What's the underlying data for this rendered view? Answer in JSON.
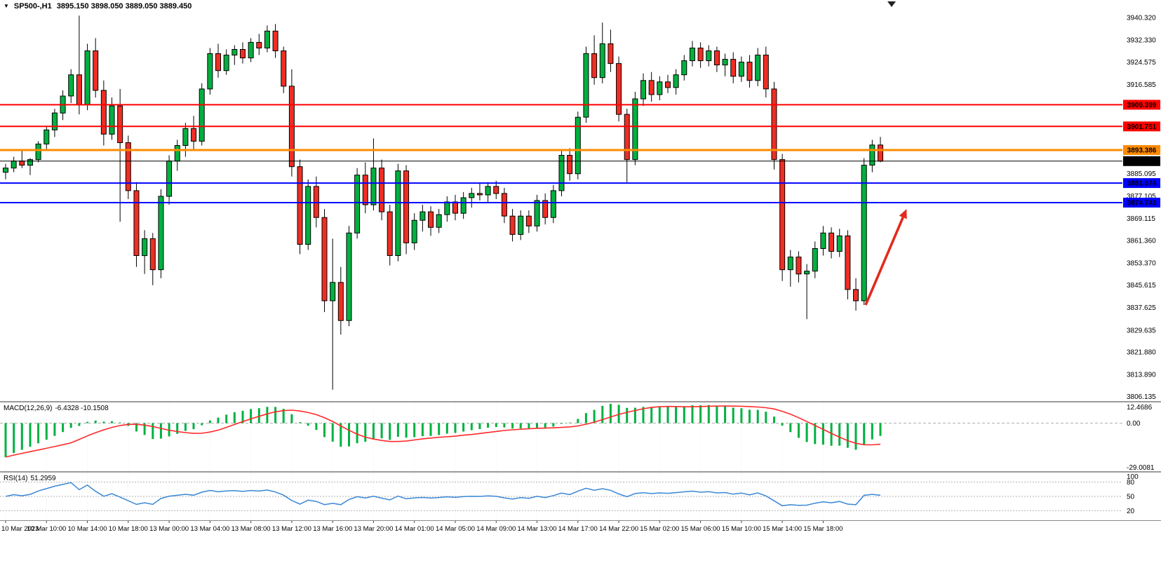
{
  "title": {
    "symbol_period": "SP500-,H1",
    "ohlc": "3895.150 3898.050 3889.050 3889.450"
  },
  "colors": {
    "background": "#ffffff",
    "up_candle": "#00b140",
    "down_candle": "#ef2e24",
    "wick": "#000000",
    "candle_border": "#000000",
    "macd_histogram": "#00b140",
    "macd_signal": "#ff2a2a",
    "rsi_line": "#3a87d6",
    "arrow": "#e12b1e",
    "grid": "#ececec",
    "level_dash": "#b0b0b0"
  },
  "levels": [
    {
      "price": 3909.399,
      "label": "3909.399",
      "color": "#ff0000",
      "width": 2,
      "name": "resistance-1"
    },
    {
      "price": 3901.751,
      "label": "3901.751",
      "color": "#ff0000",
      "width": 2,
      "name": "resistance-2"
    },
    {
      "price": 3893.386,
      "label": "3893.386",
      "color": "#ff8a00",
      "width": 3,
      "name": "pivot"
    },
    {
      "price": 3881.674,
      "label": "3881.674",
      "color": "#0000ff",
      "width": 2,
      "name": "support-1"
    },
    {
      "price": 3874.743,
      "label": "3874.743",
      "color": "#0000ff",
      "width": 2,
      "name": "support-2"
    }
  ],
  "current_price": {
    "value": 3889.45,
    "label": "3889.450",
    "color": "#000000"
  },
  "price_axis": [
    {
      "text": "3940.320",
      "value": 3940.32
    },
    {
      "text": "3932.330",
      "value": 3932.33
    },
    {
      "text": "3924.575",
      "value": 3924.575
    },
    {
      "text": "3916.585",
      "value": 3916.585
    },
    {
      "text": "3885.095",
      "value": 3885.095
    },
    {
      "text": "3877.105",
      "value": 3877.105
    },
    {
      "text": "3869.115",
      "value": 3869.115
    },
    {
      "text": "3861.360",
      "value": 3861.36
    },
    {
      "text": "3853.370",
      "value": 3853.37
    },
    {
      "text": "3845.615",
      "value": 3845.615
    },
    {
      "text": "3837.625",
      "value": 3837.625
    },
    {
      "text": "3829.635",
      "value": 3829.635
    },
    {
      "text": "3821.880",
      "value": 3821.88
    },
    {
      "text": "3813.890",
      "value": 3813.89
    },
    {
      "text": "3806.135",
      "value": 3806.135
    }
  ],
  "chart_data": {
    "type": "candlestick",
    "symbol": "SP500-",
    "timeframe": "H1",
    "ylim": [
      3804.5,
      3946.5
    ],
    "x_axis": {
      "step_bars": 5,
      "labels": [
        "10 Mar 2023",
        "10 Mar 10:00",
        "10 Mar 14:00",
        "10 Mar 18:00",
        "13 Mar 00:00",
        "13 Mar 04:00",
        "13 Mar 08:00",
        "13 Mar 12:00",
        "13 Mar 16:00",
        "13 Mar 20:00",
        "14 Mar 01:00",
        "14 Mar 05:00",
        "14 Mar 09:00",
        "14 Mar 13:00",
        "14 Mar 17:00",
        "14 Mar 22:00",
        "15 Mar 02:00",
        "15 Mar 06:00",
        "15 Mar 10:00",
        "15 Mar 14:00",
        "15 Mar 18:00"
      ]
    },
    "candles": [
      [
        3885.5,
        3888.5,
        3883.0,
        3887.0
      ],
      [
        3887.0,
        3891.0,
        3885.5,
        3889.5
      ],
      [
        3889.5,
        3893.0,
        3887.0,
        3888.0
      ],
      [
        3888.0,
        3890.5,
        3884.5,
        3890.0
      ],
      [
        3890.0,
        3896.5,
        3889.0,
        3895.5
      ],
      [
        3895.5,
        3902.0,
        3893.5,
        3900.5
      ],
      [
        3900.5,
        3908.0,
        3898.0,
        3906.5
      ],
      [
        3906.5,
        3914.5,
        3904.0,
        3912.5
      ],
      [
        3912.5,
        3922.0,
        3910.0,
        3920.0
      ],
      [
        3920.0,
        3941.0,
        3906.0,
        3909.5
      ],
      [
        3909.5,
        3931.0,
        3907.5,
        3928.5
      ],
      [
        3928.5,
        3933.0,
        3912.0,
        3914.5
      ],
      [
        3914.5,
        3918.0,
        3895.0,
        3899.0
      ],
      [
        3899.0,
        3912.0,
        3897.0,
        3909.0
      ],
      [
        3909.0,
        3915.0,
        3868.0,
        3896.0
      ],
      [
        3896.0,
        3898.5,
        3876.0,
        3879.0
      ],
      [
        3879.0,
        3882.0,
        3852.0,
        3856.0
      ],
      [
        3856.0,
        3865.0,
        3849.5,
        3862.0
      ],
      [
        3862.0,
        3864.0,
        3845.5,
        3851.0
      ],
      [
        3851.0,
        3879.5,
        3848.0,
        3877.0
      ],
      [
        3877.0,
        3891.5,
        3874.0,
        3889.5
      ],
      [
        3889.5,
        3897.0,
        3886.0,
        3895.0
      ],
      [
        3895.0,
        3903.0,
        3891.0,
        3901.0
      ],
      [
        3901.0,
        3905.5,
        3893.5,
        3896.5
      ],
      [
        3896.5,
        3917.0,
        3895.0,
        3915.0
      ],
      [
        3915.0,
        3929.5,
        3913.0,
        3927.5
      ],
      [
        3927.5,
        3931.0,
        3919.0,
        3921.5
      ],
      [
        3921.5,
        3929.0,
        3920.0,
        3927.0
      ],
      [
        3927.0,
        3930.5,
        3923.5,
        3929.0
      ],
      [
        3929.0,
        3931.5,
        3924.0,
        3926.0
      ],
      [
        3926.0,
        3933.0,
        3924.5,
        3931.5
      ],
      [
        3931.5,
        3934.5,
        3927.0,
        3929.5
      ],
      [
        3929.5,
        3937.5,
        3928.0,
        3935.5
      ],
      [
        3935.5,
        3938.0,
        3926.0,
        3928.5
      ],
      [
        3928.5,
        3930.0,
        3913.5,
        3916.0
      ],
      [
        3916.0,
        3922.0,
        3884.0,
        3887.5
      ],
      [
        3887.5,
        3890.0,
        3856.5,
        3860.0
      ],
      [
        3860.0,
        3883.0,
        3858.0,
        3880.5
      ],
      [
        3880.5,
        3884.0,
        3866.0,
        3869.5
      ],
      [
        3869.5,
        3872.5,
        3836.0,
        3840.0
      ],
      [
        3840.0,
        3862.0,
        3808.5,
        3846.5
      ],
      [
        3846.5,
        3852.0,
        3828.0,
        3833.0
      ],
      [
        3833.0,
        3866.5,
        3831.0,
        3864.0
      ],
      [
        3864.0,
        3887.0,
        3862.0,
        3884.5
      ],
      [
        3884.5,
        3889.0,
        3871.0,
        3874.0
      ],
      [
        3874.0,
        3897.5,
        3872.0,
        3887.0
      ],
      [
        3887.0,
        3890.0,
        3868.5,
        3871.5
      ],
      [
        3871.5,
        3874.0,
        3852.5,
        3856.0
      ],
      [
        3856.0,
        3888.5,
        3854.0,
        3886.0
      ],
      [
        3886.0,
        3888.0,
        3856.5,
        3860.5
      ],
      [
        3860.5,
        3871.0,
        3858.0,
        3868.5
      ],
      [
        3868.5,
        3874.0,
        3864.5,
        3871.5
      ],
      [
        3871.5,
        3873.5,
        3863.0,
        3866.0
      ],
      [
        3866.0,
        3872.5,
        3864.0,
        3870.5
      ],
      [
        3870.5,
        3877.0,
        3868.0,
        3875.0
      ],
      [
        3875.0,
        3877.5,
        3868.5,
        3871.0
      ],
      [
        3871.0,
        3878.5,
        3869.0,
        3876.5
      ],
      [
        3876.5,
        3880.0,
        3873.0,
        3878.0
      ],
      [
        3878.0,
        3881.5,
        3875.5,
        3877.5
      ],
      [
        3877.5,
        3882.0,
        3874.5,
        3880.5
      ],
      [
        3880.5,
        3882.5,
        3876.0,
        3878.0
      ],
      [
        3878.0,
        3880.0,
        3867.5,
        3870.0
      ],
      [
        3870.0,
        3872.5,
        3861.0,
        3863.5
      ],
      [
        3863.5,
        3872.0,
        3861.5,
        3870.0
      ],
      [
        3870.0,
        3872.0,
        3864.0,
        3866.5
      ],
      [
        3866.5,
        3877.5,
        3864.5,
        3875.5
      ],
      [
        3875.5,
        3878.0,
        3867.0,
        3869.5
      ],
      [
        3869.5,
        3881.0,
        3867.5,
        3879.0
      ],
      [
        3879.0,
        3893.5,
        3877.0,
        3891.5
      ],
      [
        3891.5,
        3894.0,
        3882.5,
        3885.0
      ],
      [
        3885.0,
        3907.0,
        3883.0,
        3905.0
      ],
      [
        3905.0,
        3930.0,
        3903.0,
        3927.5
      ],
      [
        3927.5,
        3934.0,
        3916.5,
        3919.0
      ],
      [
        3919.0,
        3938.5,
        3917.0,
        3931.0
      ],
      [
        3931.0,
        3936.0,
        3921.0,
        3924.0
      ],
      [
        3924.0,
        3926.5,
        3903.5,
        3906.0
      ],
      [
        3906.0,
        3908.0,
        3882.0,
        3890.0
      ],
      [
        3890.0,
        3914.0,
        3888.0,
        3911.5
      ],
      [
        3911.5,
        3920.5,
        3909.0,
        3918.0
      ],
      [
        3918.0,
        3921.0,
        3910.5,
        3913.0
      ],
      [
        3913.0,
        3919.5,
        3911.0,
        3917.5
      ],
      [
        3917.5,
        3920.0,
        3913.5,
        3915.5
      ],
      [
        3915.5,
        3922.0,
        3913.0,
        3920.0
      ],
      [
        3920.0,
        3927.0,
        3918.0,
        3925.0
      ],
      [
        3925.0,
        3932.0,
        3923.0,
        3929.5
      ],
      [
        3929.5,
        3931.5,
        3922.5,
        3925.0
      ],
      [
        3925.0,
        3930.5,
        3923.0,
        3928.5
      ],
      [
        3928.5,
        3930.0,
        3921.0,
        3923.5
      ],
      [
        3923.5,
        3927.5,
        3919.5,
        3925.5
      ],
      [
        3925.5,
        3928.0,
        3917.0,
        3919.5
      ],
      [
        3919.5,
        3926.5,
        3917.5,
        3924.5
      ],
      [
        3924.5,
        3927.0,
        3915.5,
        3918.0
      ],
      [
        3918.0,
        3929.5,
        3916.0,
        3927.0
      ],
      [
        3927.0,
        3930.0,
        3912.0,
        3915.0
      ],
      [
        3915.0,
        3917.5,
        3886.5,
        3890.0
      ],
      [
        3890.0,
        3892.0,
        3847.0,
        3851.0
      ],
      [
        3851.0,
        3858.0,
        3845.0,
        3855.5
      ],
      [
        3855.5,
        3857.5,
        3846.5,
        3849.5
      ],
      [
        3849.5,
        3853.0,
        3833.5,
        3850.5
      ],
      [
        3850.5,
        3861.0,
        3848.0,
        3858.5
      ],
      [
        3858.5,
        3866.5,
        3856.0,
        3864.0
      ],
      [
        3864.0,
        3866.0,
        3855.0,
        3857.5
      ],
      [
        3857.5,
        3865.5,
        3855.5,
        3863.0
      ],
      [
        3863.0,
        3865.0,
        3840.5,
        3844.0
      ],
      [
        3844.0,
        3848.0,
        3836.5,
        3840.0
      ],
      [
        3840.0,
        3890.5,
        3838.5,
        3888.0
      ],
      [
        3888.0,
        3897.0,
        3885.5,
        3895.15
      ],
      [
        3895.15,
        3898.05,
        3889.05,
        3889.45
      ]
    ],
    "macd": {
      "label": "MACD(12,26,9)",
      "values_label": "-6.4328 -10.1508",
      "main_value": -6.4328,
      "signal_value": -10.1508,
      "params": [
        12,
        26,
        9
      ],
      "ylim": [
        -29.0081,
        12.4686
      ],
      "axis_labels": [
        "12.4686",
        "0.00",
        "-29.0081"
      ]
    },
    "rsi": {
      "label": "RSI(14)",
      "value_label": "51.2959",
      "value": 51.2959,
      "period": 14,
      "ylim": [
        0,
        100
      ],
      "levels": [
        80,
        50,
        20
      ],
      "axis_labels": [
        "100",
        "80",
        "50",
        "20"
      ]
    },
    "annotation_arrow": {
      "from_bar": 105.2,
      "from_price": 3838.5,
      "to_bar": 110.2,
      "to_price": 3872.5
    }
  }
}
